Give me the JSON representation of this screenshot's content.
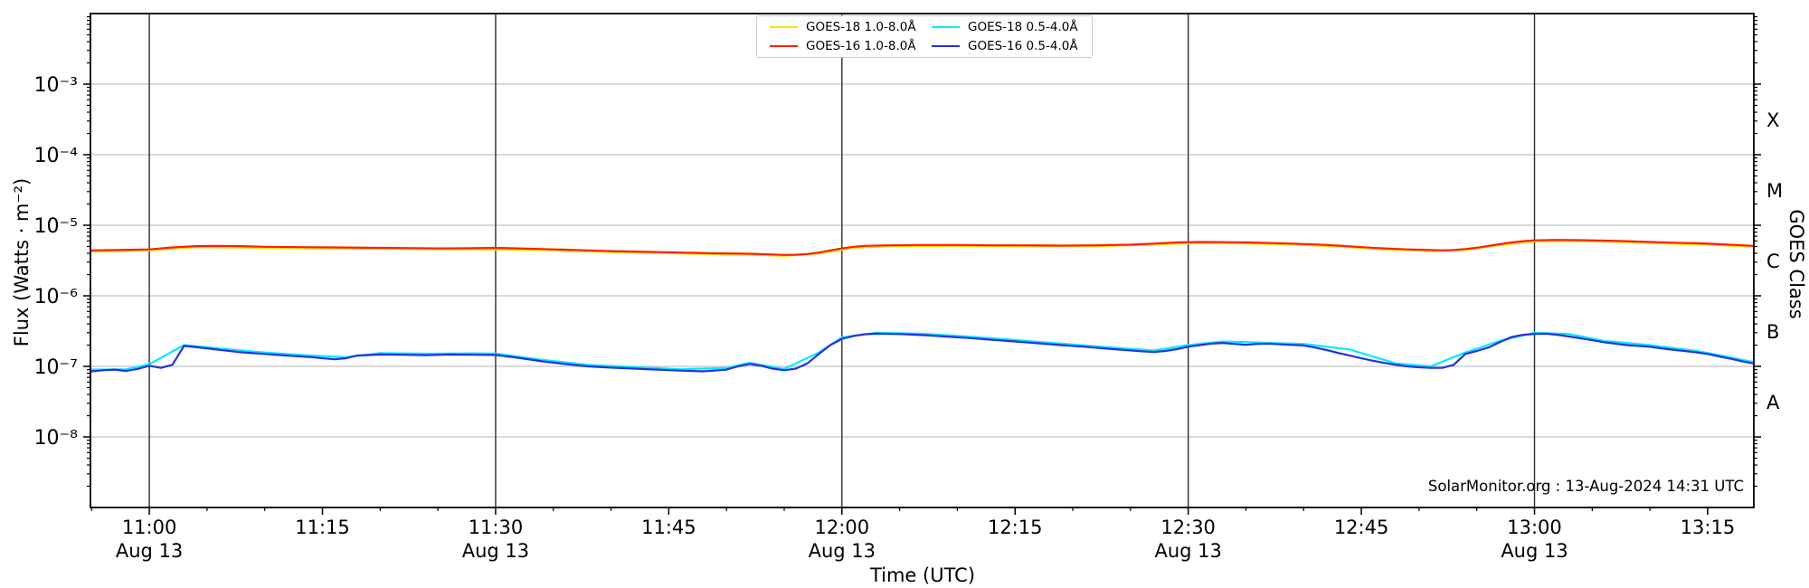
{
  "watermark": "SolarMonitor.org : 13-Aug-2024 14:31 UTC",
  "axes": {
    "xlabel": "Time (UTC)",
    "ylabel_left": "Flux (Watts · m⁻²)",
    "ylabel_right": "GOES Class",
    "y_ticks": [
      {
        "exp": -3,
        "label": "10⁻³"
      },
      {
        "exp": -4,
        "label": "10⁻⁴"
      },
      {
        "exp": -5,
        "label": "10⁻⁵"
      },
      {
        "exp": -6,
        "label": "10⁻⁶"
      },
      {
        "exp": -7,
        "label": "10⁻⁷"
      },
      {
        "exp": -8,
        "label": "10⁻⁸"
      }
    ],
    "x_major_ticks": [
      {
        "t": 0,
        "time": "11:00",
        "date": "Aug 13"
      },
      {
        "t": 15,
        "time": "11:15",
        "date": ""
      },
      {
        "t": 30,
        "time": "11:30",
        "date": "Aug 13"
      },
      {
        "t": 45,
        "time": "11:45",
        "date": ""
      },
      {
        "t": 60,
        "time": "12:00",
        "date": "Aug 13"
      },
      {
        "t": 75,
        "time": "12:15",
        "date": ""
      },
      {
        "t": 90,
        "time": "12:30",
        "date": "Aug 13"
      },
      {
        "t": 105,
        "time": "12:45",
        "date": ""
      },
      {
        "t": 120,
        "time": "13:00",
        "date": "Aug 13"
      },
      {
        "t": 135,
        "time": "13:15",
        "date": ""
      }
    ],
    "class_ticks": [
      {
        "label": "X",
        "logv": -3.5
      },
      {
        "label": "M",
        "logv": -4.5
      },
      {
        "label": "C",
        "logv": -5.5
      },
      {
        "label": "B",
        "logv": -6.5
      },
      {
        "label": "A",
        "logv": -7.5
      }
    ]
  },
  "legend": {
    "entries": [
      {
        "label": "GOES-18 1.0-8.0Å",
        "color": "#ffdf00"
      },
      {
        "label": "GOES-16 1.0-8.0Å",
        "color": "#ff2000"
      },
      {
        "label": "GOES-18 0.5-4.0Å",
        "color": "#00eaff"
      },
      {
        "label": "GOES-16 0.5-4.0Å",
        "color": "#2233dd"
      }
    ]
  },
  "colors": {
    "grid_h": "#c4c4c4",
    "grid_v": "#2e2e2e",
    "spine": "#000000"
  },
  "chart_data": {
    "type": "line",
    "title": "",
    "xlabel": "Time (UTC)",
    "ylabel": "Flux (Watts · m⁻²)",
    "x_unit": "minutes after 11:00 UTC on 13-Aug-2024",
    "x_range_time": [
      "10:55",
      "13:19"
    ],
    "xlim_minutes": [
      -5.1,
      139
    ],
    "y_scale": "log",
    "ylim": [
      1e-09,
      0.01
    ],
    "h_gridline_exponents": [
      -3,
      -4,
      -5,
      -6,
      -7,
      -8
    ],
    "v_gridline_minutes": [
      0,
      30,
      60,
      90,
      120
    ],
    "legend_position": "top center",
    "series": [
      {
        "name": "GOES-18 1.0-8.0Å",
        "color": "#ffdf00",
        "points": [
          [
            -5,
            4.25e-06
          ],
          [
            0,
            4.4e-06
          ],
          [
            4,
            4.9e-06
          ],
          [
            10,
            4.8e-06
          ],
          [
            16,
            4.7e-06
          ],
          [
            22,
            4.6e-06
          ],
          [
            28,
            4.58e-06
          ],
          [
            34,
            4.45e-06
          ],
          [
            40,
            4.17e-06
          ],
          [
            46,
            3.98e-06
          ],
          [
            52,
            3.83e-06
          ],
          [
            55,
            3.69e-06
          ],
          [
            58,
            3.98e-06
          ],
          [
            61,
            4.8e-06
          ],
          [
            64,
            5.05e-06
          ],
          [
            70,
            5.1e-06
          ],
          [
            76,
            5.04e-06
          ],
          [
            82,
            5.04e-06
          ],
          [
            87,
            5.33e-06
          ],
          [
            91,
            5.63e-06
          ],
          [
            95,
            5.53e-06
          ],
          [
            99,
            5.33e-06
          ],
          [
            103,
            5e-06
          ],
          [
            107,
            4.56e-06
          ],
          [
            111,
            4.32e-06
          ],
          [
            114,
            4.46e-06
          ],
          [
            117,
            5.24e-06
          ],
          [
            120,
            5.92e-06
          ],
          [
            124,
            5.97e-06
          ],
          [
            128,
            5.77e-06
          ],
          [
            132,
            5.48e-06
          ],
          [
            136,
            5.24e-06
          ],
          [
            139,
            4.95e-06
          ]
        ]
      },
      {
        "name": "GOES-16 1.0-8.0Å",
        "color": "#ff2000",
        "points": [
          [
            -5,
            4.4e-06
          ],
          [
            -3,
            4.45e-06
          ],
          [
            -1,
            4.5e-06
          ],
          [
            0,
            4.55e-06
          ],
          [
            2,
            4.85e-06
          ],
          [
            4,
            5.05e-06
          ],
          [
            6,
            5.1e-06
          ],
          [
            8,
            5.05e-06
          ],
          [
            10,
            4.95e-06
          ],
          [
            13,
            4.9e-06
          ],
          [
            16,
            4.85e-06
          ],
          [
            19,
            4.8e-06
          ],
          [
            22,
            4.75e-06
          ],
          [
            25,
            4.7e-06
          ],
          [
            28,
            4.72e-06
          ],
          [
            30,
            4.78e-06
          ],
          [
            32,
            4.7e-06
          ],
          [
            34,
            4.6e-06
          ],
          [
            36,
            4.5e-06
          ],
          [
            38,
            4.4e-06
          ],
          [
            40,
            4.3e-06
          ],
          [
            43,
            4.2e-06
          ],
          [
            46,
            4.1e-06
          ],
          [
            49,
            4e-06
          ],
          [
            52,
            3.95e-06
          ],
          [
            54,
            3.85e-06
          ],
          [
            55,
            3.8e-06
          ],
          [
            56,
            3.82e-06
          ],
          [
            57,
            3.9e-06
          ],
          [
            58,
            4.1e-06
          ],
          [
            59,
            4.4e-06
          ],
          [
            60,
            4.7e-06
          ],
          [
            61,
            4.95e-06
          ],
          [
            62,
            5.1e-06
          ],
          [
            64,
            5.2e-06
          ],
          [
            67,
            5.25e-06
          ],
          [
            70,
            5.25e-06
          ],
          [
            73,
            5.2e-06
          ],
          [
            76,
            5.2e-06
          ],
          [
            79,
            5.15e-06
          ],
          [
            82,
            5.2e-06
          ],
          [
            85,
            5.3e-06
          ],
          [
            87,
            5.5e-06
          ],
          [
            89,
            5.7e-06
          ],
          [
            91,
            5.8e-06
          ],
          [
            93,
            5.75e-06
          ],
          [
            95,
            5.7e-06
          ],
          [
            97,
            5.6e-06
          ],
          [
            99,
            5.5e-06
          ],
          [
            101,
            5.35e-06
          ],
          [
            103,
            5.15e-06
          ],
          [
            105,
            4.9e-06
          ],
          [
            107,
            4.7e-06
          ],
          [
            109,
            4.55e-06
          ],
          [
            111,
            4.45e-06
          ],
          [
            112,
            4.4e-06
          ],
          [
            113,
            4.45e-06
          ],
          [
            114,
            4.6e-06
          ],
          [
            115,
            4.8e-06
          ],
          [
            116,
            5.1e-06
          ],
          [
            117,
            5.4e-06
          ],
          [
            118,
            5.7e-06
          ],
          [
            119,
            5.95e-06
          ],
          [
            120,
            6.1e-06
          ],
          [
            122,
            6.2e-06
          ],
          [
            124,
            6.15e-06
          ],
          [
            126,
            6.05e-06
          ],
          [
            128,
            5.95e-06
          ],
          [
            130,
            5.8e-06
          ],
          [
            132,
            5.65e-06
          ],
          [
            134,
            5.55e-06
          ],
          [
            136,
            5.4e-06
          ],
          [
            138,
            5.2e-06
          ],
          [
            139,
            5.1e-06
          ]
        ]
      },
      {
        "name": "GOES-18 0.5-4.0Å",
        "color": "#00eaff",
        "points": [
          [
            -5,
            9e-08
          ],
          [
            -2,
            9.1e-08
          ],
          [
            0,
            1.07e-07
          ],
          [
            3,
            2e-07
          ],
          [
            6,
            1.8e-07
          ],
          [
            10,
            1.57e-07
          ],
          [
            14,
            1.42e-07
          ],
          [
            17,
            1.35e-07
          ],
          [
            20,
            1.54e-07
          ],
          [
            24,
            1.51e-07
          ],
          [
            28,
            1.53e-07
          ],
          [
            30,
            1.52e-07
          ],
          [
            34,
            1.24e-07
          ],
          [
            38,
            1.05e-07
          ],
          [
            42,
            9.8e-08
          ],
          [
            46,
            9.1e-08
          ],
          [
            50,
            9.5e-08
          ],
          [
            52,
            1.13e-07
          ],
          [
            55,
            9.2e-08
          ],
          [
            58,
            1.57e-07
          ],
          [
            60,
            2.57e-07
          ],
          [
            63,
            3e-07
          ],
          [
            67,
            2.9e-07
          ],
          [
            71,
            2.64e-07
          ],
          [
            75,
            2.36e-07
          ],
          [
            79,
            2.1e-07
          ],
          [
            83,
            1.87e-07
          ],
          [
            87,
            1.68e-07
          ],
          [
            90,
            2e-07
          ],
          [
            93,
            2.25e-07
          ],
          [
            96,
            2.18e-07
          ],
          [
            100,
            2.08e-07
          ],
          [
            104,
            1.73e-07
          ],
          [
            108,
            1.1e-07
          ],
          [
            111,
            1e-07
          ],
          [
            114,
            1.57e-07
          ],
          [
            117,
            2.3e-07
          ],
          [
            120,
            3e-07
          ],
          [
            123,
            2.88e-07
          ],
          [
            126,
            2.3e-07
          ],
          [
            130,
            2e-07
          ],
          [
            134,
            1.66e-07
          ],
          [
            137,
            1.34e-07
          ],
          [
            139,
            1.15e-07
          ]
        ]
      },
      {
        "name": "GOES-16 0.5-4.0Å",
        "color": "#2233dd",
        "points": [
          [
            -5,
            8.5e-08
          ],
          [
            -4,
            8.8e-08
          ],
          [
            -3,
            9e-08
          ],
          [
            -2,
            8.6e-08
          ],
          [
            -1,
            9.2e-08
          ],
          [
            0,
            1.02e-07
          ],
          [
            1,
            9.5e-08
          ],
          [
            2,
            1.05e-07
          ],
          [
            3,
            1.95e-07
          ],
          [
            4,
            1.88e-07
          ],
          [
            6,
            1.72e-07
          ],
          [
            8,
            1.58e-07
          ],
          [
            10,
            1.5e-07
          ],
          [
            12,
            1.42e-07
          ],
          [
            14,
            1.35e-07
          ],
          [
            16,
            1.26e-07
          ],
          [
            17,
            1.3e-07
          ],
          [
            18,
            1.42e-07
          ],
          [
            20,
            1.47e-07
          ],
          [
            22,
            1.46e-07
          ],
          [
            24,
            1.44e-07
          ],
          [
            26,
            1.47e-07
          ],
          [
            28,
            1.46e-07
          ],
          [
            30,
            1.45e-07
          ],
          [
            32,
            1.32e-07
          ],
          [
            34,
            1.18e-07
          ],
          [
            36,
            1.08e-07
          ],
          [
            38,
            1e-07
          ],
          [
            40,
            9.6e-08
          ],
          [
            42,
            9.3e-08
          ],
          [
            44,
            9e-08
          ],
          [
            46,
            8.7e-08
          ],
          [
            48,
            8.5e-08
          ],
          [
            50,
            9e-08
          ],
          [
            51,
            1e-07
          ],
          [
            52,
            1.08e-07
          ],
          [
            53,
            1.02e-07
          ],
          [
            54,
            9.3e-08
          ],
          [
            55,
            8.8e-08
          ],
          [
            56,
            9.3e-08
          ],
          [
            57,
            1.1e-07
          ],
          [
            58,
            1.5e-07
          ],
          [
            59,
            2e-07
          ],
          [
            60,
            2.45e-07
          ],
          [
            61,
            2.7e-07
          ],
          [
            62,
            2.85e-07
          ],
          [
            63,
            2.9e-07
          ],
          [
            65,
            2.87e-07
          ],
          [
            67,
            2.78e-07
          ],
          [
            69,
            2.65e-07
          ],
          [
            71,
            2.52e-07
          ],
          [
            73,
            2.38e-07
          ],
          [
            75,
            2.25e-07
          ],
          [
            77,
            2.12e-07
          ],
          [
            79,
            2e-07
          ],
          [
            81,
            1.9e-07
          ],
          [
            83,
            1.78e-07
          ],
          [
            85,
            1.68e-07
          ],
          [
            86,
            1.63e-07
          ],
          [
            87,
            1.6e-07
          ],
          [
            88,
            1.65e-07
          ],
          [
            89,
            1.75e-07
          ],
          [
            90,
            1.9e-07
          ],
          [
            91,
            2e-07
          ],
          [
            92,
            2.1e-07
          ],
          [
            93,
            2.15e-07
          ],
          [
            94,
            2.08e-07
          ],
          [
            95,
            2.02e-07
          ],
          [
            96,
            2.08e-07
          ],
          [
            97,
            2.1e-07
          ],
          [
            98,
            2.05e-07
          ],
          [
            100,
            1.98e-07
          ],
          [
            101,
            1.85e-07
          ],
          [
            102,
            1.7e-07
          ],
          [
            103,
            1.55e-07
          ],
          [
            104,
            1.42e-07
          ],
          [
            105,
            1.3e-07
          ],
          [
            106,
            1.2e-07
          ],
          [
            107,
            1.12e-07
          ],
          [
            108,
            1.05e-07
          ],
          [
            109,
            1e-07
          ],
          [
            110,
            9.7e-08
          ],
          [
            111,
            9.5e-08
          ],
          [
            112,
            9.5e-08
          ],
          [
            113,
            1.05e-07
          ],
          [
            114,
            1.5e-07
          ],
          [
            115,
            1.65e-07
          ],
          [
            116,
            1.85e-07
          ],
          [
            117,
            2.2e-07
          ],
          [
            118,
            2.6e-07
          ],
          [
            119,
            2.8e-07
          ],
          [
            120,
            2.88e-07
          ],
          [
            121,
            2.9e-07
          ],
          [
            122,
            2.8e-07
          ],
          [
            123,
            2.65e-07
          ],
          [
            124,
            2.5e-07
          ],
          [
            125,
            2.35e-07
          ],
          [
            126,
            2.2e-07
          ],
          [
            127,
            2.1e-07
          ],
          [
            128,
            2e-07
          ],
          [
            129,
            1.95e-07
          ],
          [
            130,
            1.9e-07
          ],
          [
            131,
            1.8e-07
          ],
          [
            132,
            1.72e-07
          ],
          [
            133,
            1.65e-07
          ],
          [
            134,
            1.58e-07
          ],
          [
            135,
            1.5e-07
          ],
          [
            136,
            1.38e-07
          ],
          [
            137,
            1.28e-07
          ],
          [
            138,
            1.18e-07
          ],
          [
            139,
            1.1e-07
          ]
        ]
      }
    ]
  }
}
